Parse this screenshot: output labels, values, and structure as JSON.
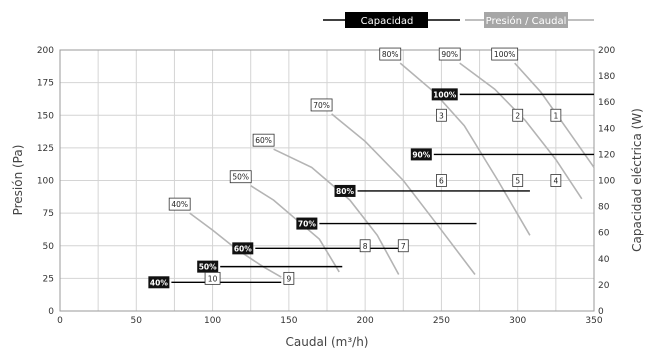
{
  "chart_data": {
    "type": "line",
    "xlabel": "Caudal (m³/h)",
    "ylabel": "Presión (Pa)",
    "y2label": "Capacidad eléctrica (W)",
    "xlim": [
      0,
      350
    ],
    "ylim": [
      0,
      200
    ],
    "y2lim": [
      0,
      200
    ],
    "x_ticks": [
      0,
      50,
      100,
      150,
      200,
      250,
      300,
      350
    ],
    "y_ticks": [
      0,
      25,
      50,
      75,
      100,
      125,
      150,
      175,
      200
    ],
    "y2_ticks": [
      0,
      20,
      40,
      60,
      80,
      100,
      120,
      140,
      160,
      180,
      200
    ],
    "grid": true,
    "legend": {
      "position": "top-right",
      "items": [
        {
          "label": "Capacidad",
          "color": "#000000",
          "style": "line"
        },
        {
          "label": "Presión / Caudal",
          "color": "#aaaaaa",
          "style": "line"
        }
      ]
    },
    "pressure_curves": [
      {
        "label": "40%",
        "points": [
          [
            85,
            75
          ],
          [
            100,
            62
          ],
          [
            115,
            48
          ],
          [
            133,
            34
          ],
          [
            145,
            26
          ]
        ]
      },
      {
        "label": "50%",
        "points": [
          [
            125,
            96
          ],
          [
            140,
            85
          ],
          [
            155,
            70
          ],
          [
            170,
            55
          ],
          [
            183,
            30
          ]
        ]
      },
      {
        "label": "60%",
        "points": [
          [
            140,
            124
          ],
          [
            165,
            110
          ],
          [
            190,
            85
          ],
          [
            208,
            58
          ],
          [
            222,
            28
          ]
        ]
      },
      {
        "label": "70%",
        "points": [
          [
            178,
            151
          ],
          [
            200,
            130
          ],
          [
            225,
            100
          ],
          [
            248,
            65
          ],
          [
            272,
            28
          ]
        ]
      },
      {
        "label": "80%",
        "points": [
          [
            223,
            190
          ],
          [
            245,
            168
          ],
          [
            265,
            142
          ],
          [
            287,
            100
          ],
          [
            308,
            58
          ]
        ]
      },
      {
        "label": "90%",
        "points": [
          [
            262,
            190
          ],
          [
            285,
            170
          ],
          [
            305,
            146
          ],
          [
            325,
            116
          ],
          [
            342,
            86
          ]
        ]
      },
      {
        "label": "100%",
        "points": [
          [
            298,
            190
          ],
          [
            315,
            168
          ],
          [
            332,
            140
          ],
          [
            350,
            110
          ]
        ]
      }
    ],
    "capacity_lines": [
      {
        "label": "40%",
        "x_start": 73,
        "x_end": 145,
        "power": 22
      },
      {
        "label": "50%",
        "x_start": 105,
        "x_end": 185,
        "power": 34
      },
      {
        "label": "60%",
        "x_start": 128,
        "x_end": 222,
        "power": 48
      },
      {
        "label": "70%",
        "x_start": 170,
        "x_end": 273,
        "power": 67
      },
      {
        "label": "80%",
        "x_start": 195,
        "x_end": 308,
        "power": 92
      },
      {
        "label": "90%",
        "x_start": 245,
        "x_end": 350,
        "power": 120
      },
      {
        "label": "100%",
        "x_start": 262,
        "x_end": 350,
        "power": 166
      }
    ],
    "operating_points": [
      {
        "label": "1",
        "x": 325,
        "y": 150
      },
      {
        "label": "2",
        "x": 300,
        "y": 150
      },
      {
        "label": "3",
        "x": 250,
        "y": 150
      },
      {
        "label": "4",
        "x": 325,
        "y": 100
      },
      {
        "label": "5",
        "x": 300,
        "y": 100
      },
      {
        "label": "6",
        "x": 250,
        "y": 100
      },
      {
        "label": "7",
        "x": 225,
        "y": 50
      },
      {
        "label": "8",
        "x": 200,
        "y": 50
      },
      {
        "label": "9",
        "x": 150,
        "y": 25
      },
      {
        "label": "10",
        "x": 100,
        "y": 25
      }
    ]
  }
}
